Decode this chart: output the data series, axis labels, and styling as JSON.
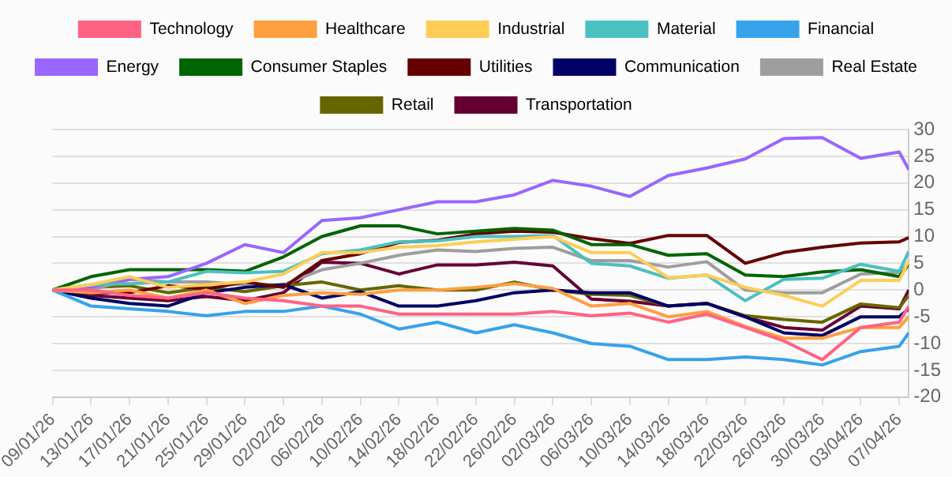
{
  "chart_data": {
    "type": "line",
    "x": [
      "--01-09",
      "--01-13",
      "--01-17",
      "--01-21",
      "--01-25",
      "--01-29",
      "--02-02",
      "--02-06",
      "--02-10",
      "--02-14",
      "--02-18",
      "--02-22",
      "--02-26",
      "--03-02",
      "--03-06",
      "--03-10",
      "--03-14",
      "--03-18",
      "--03-22",
      "--03-26",
      "--03-30",
      "--04-03",
      "--04-07",
      "--04-08"
    ],
    "series": [
      {
        "name": "Technology",
        "color": "#ff6384",
        "values": [
          0,
          0,
          -1,
          -1.5,
          -0.5,
          -1.5,
          -2,
          -3,
          -3,
          -4.5,
          -4.5,
          -4.5,
          -4.5,
          -4,
          -4.8,
          -4.3,
          -6,
          -4.5,
          -7,
          -9.5,
          -13,
          -7,
          -6,
          -3
        ]
      },
      {
        "name": "Healthcare",
        "color": "#ff9f40",
        "values": [
          0,
          -0.5,
          0,
          -1.5,
          0,
          -2.5,
          -1,
          -0.5,
          -0.8,
          0,
          0,
          0.5,
          1.2,
          0.3,
          -3,
          -2.5,
          -5,
          -4,
          -6.8,
          -9,
          -9,
          -7,
          -7,
          -5
        ]
      },
      {
        "name": "Industrial",
        "color": "#ffcd56",
        "values": [
          0,
          1,
          2.5,
          0.5,
          1,
          1.5,
          3,
          7,
          7,
          8,
          8.3,
          9,
          9.5,
          10,
          7,
          7,
          2.3,
          2.8,
          0.5,
          -1,
          -3,
          1.8,
          1.8,
          5.5
        ]
      },
      {
        "name": "Material",
        "color": "#4bc0c0",
        "values": [
          0,
          1,
          1.2,
          1.5,
          3.5,
          3.2,
          3.5,
          6.8,
          7.5,
          9,
          9.2,
          10,
          10,
          10.2,
          5,
          4.5,
          2.2,
          2.8,
          -2,
          2,
          2.2,
          4.8,
          3.5,
          7.2
        ]
      },
      {
        "name": "Financial",
        "color": "#36a2eb",
        "values": [
          0,
          -3,
          -3.5,
          -4,
          -4.8,
          -4,
          -4,
          -3,
          -4.5,
          -7.3,
          -6,
          -8,
          -6.5,
          -8,
          -10,
          -10.5,
          -13,
          -13,
          -12.5,
          -13,
          -14,
          -11.5,
          -10.5,
          -8
        ]
      },
      {
        "name": "Energy",
        "color": "#9966ff",
        "values": [
          0,
          0.5,
          2,
          2.5,
          5,
          8.5,
          7,
          13,
          13.5,
          15,
          16.5,
          16.5,
          17.8,
          20.5,
          19.4,
          17.5,
          21.4,
          22.8,
          24.5,
          28.3,
          28.5,
          24.6,
          25.8,
          22.5
        ]
      },
      {
        "name": "Consumer Staples",
        "color": "#006400",
        "values": [
          0,
          2.5,
          3.8,
          3.8,
          3.8,
          3.5,
          6.2,
          10,
          12,
          12,
          10.5,
          11,
          11.5,
          11.2,
          8.5,
          8.5,
          6.5,
          6.8,
          2.8,
          2.5,
          3.4,
          3.8,
          2.5,
          4.8
        ]
      },
      {
        "name": "Utilities",
        "color": "#660000",
        "values": [
          0,
          -0.5,
          -0.5,
          0.8,
          0.2,
          1.5,
          0.5,
          5.5,
          6.8,
          8.9,
          9.3,
          10.5,
          11,
          10.8,
          9.6,
          8.7,
          10.2,
          10.2,
          5,
          7,
          8,
          8.8,
          9,
          9.8
        ]
      },
      {
        "name": "Communication",
        "color": "#000066",
        "values": [
          0,
          -1.5,
          -2.5,
          -3,
          -0.5,
          0.5,
          1,
          -1.5,
          -0.3,
          -3,
          -3,
          -2,
          -0.5,
          0,
          -0.5,
          -0.5,
          -3,
          -2.5,
          -5,
          -8,
          -8.5,
          -5,
          -5,
          -3.5
        ]
      },
      {
        "name": "Real Estate",
        "color": "#9e9e9e",
        "values": [
          0,
          0,
          2,
          1.5,
          1.5,
          1,
          1,
          3.8,
          5,
          6.5,
          7.5,
          7.2,
          7.8,
          8,
          5.5,
          5.5,
          4.3,
          5.3,
          0,
          -0.5,
          -0.5,
          3,
          3.3,
          5
        ]
      },
      {
        "name": "Retail",
        "color": "#666600",
        "values": [
          0,
          0.5,
          0.8,
          -0.5,
          0.5,
          -0.3,
          0.8,
          1.5,
          0,
          0.8,
          0,
          0,
          1.5,
          0,
          -0.8,
          -1,
          -3,
          -2.5,
          -4.8,
          -5.5,
          -6,
          -2.6,
          -3.3,
          -1
        ]
      },
      {
        "name": "Transportation",
        "color": "#660033",
        "values": [
          0,
          -1,
          -1.5,
          -2,
          -1.2,
          -2,
          -0.5,
          5.2,
          5,
          3,
          4.7,
          4.7,
          5.2,
          4.5,
          -1.7,
          -2.1,
          -3,
          -2.5,
          -5,
          -7,
          -7.5,
          -3,
          -3.5,
          0
        ]
      }
    ],
    "xlim": [
      "--01-09",
      "--04-08"
    ],
    "xticks": [
      {
        "value": "--01-09",
        "label": "09/01/26"
      },
      {
        "value": "--01-13",
        "label": "13/01/26"
      },
      {
        "value": "--01-17",
        "label": "17/01/26"
      },
      {
        "value": "--01-21",
        "label": "21/01/26"
      },
      {
        "value": "--01-25",
        "label": "25/01/26"
      },
      {
        "value": "--01-29",
        "label": "29/01/26"
      },
      {
        "value": "--02-02",
        "label": "02/02/26"
      },
      {
        "value": "--02-06",
        "label": "06/02/26"
      },
      {
        "value": "--02-10",
        "label": "10/02/26"
      },
      {
        "value": "--02-14",
        "label": "14/02/26"
      },
      {
        "value": "--02-18",
        "label": "18/02/26"
      },
      {
        "value": "--02-22",
        "label": "22/02/26"
      },
      {
        "value": "--02-26",
        "label": "26/02/26"
      },
      {
        "value": "--03-02",
        "label": "02/03/26"
      },
      {
        "value": "--03-06",
        "label": "06/03/26"
      },
      {
        "value": "--03-10",
        "label": "10/03/26"
      },
      {
        "value": "--03-14",
        "label": "14/03/26"
      },
      {
        "value": "--03-18",
        "label": "18/03/26"
      },
      {
        "value": "--03-22",
        "label": "22/03/26"
      },
      {
        "value": "--03-26",
        "label": "26/03/26"
      },
      {
        "value": "--03-30",
        "label": "30/03/26"
      },
      {
        "value": "--04-03",
        "label": "03/04/26"
      },
      {
        "value": "--04-07",
        "label": "07/04/26"
      }
    ],
    "ylim": [
      -20,
      30
    ],
    "yticks": [
      -20,
      -15,
      -10,
      -5,
      0,
      5,
      10,
      15,
      20,
      25,
      30
    ],
    "grid": "y",
    "legend": "top",
    "marker": "none",
    "line_style": "solid"
  }
}
